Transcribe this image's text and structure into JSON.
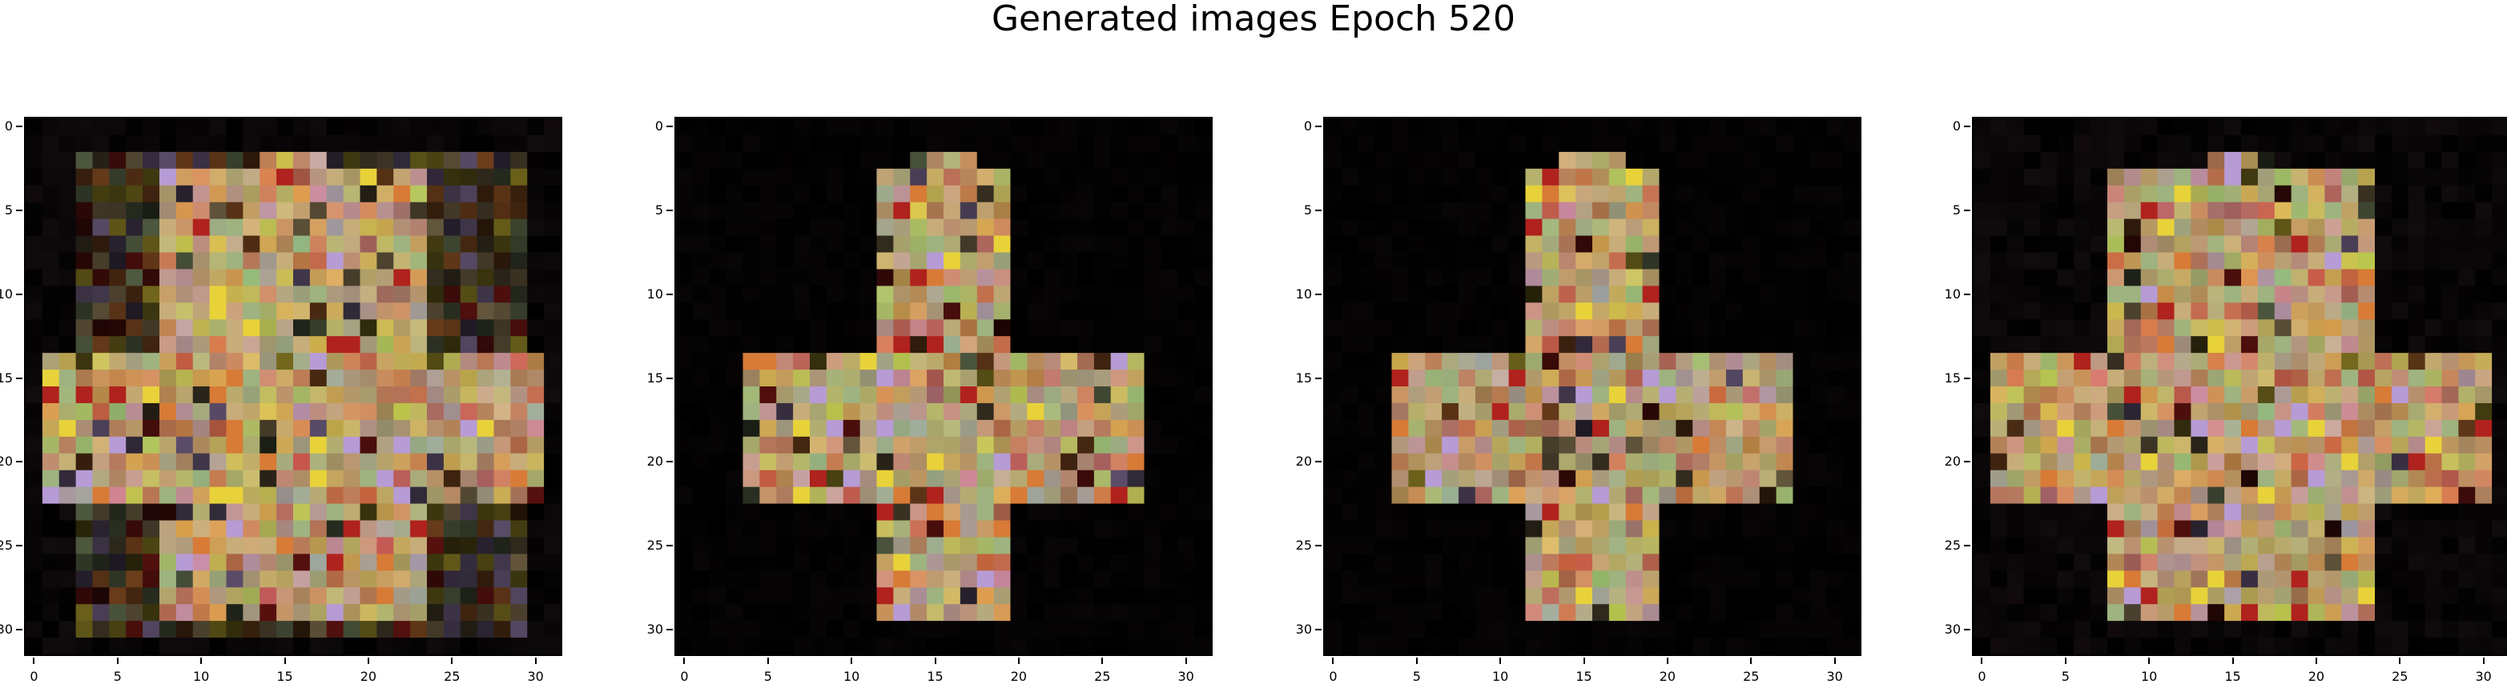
{
  "figure": {
    "title": "Generated images Epoch 520"
  },
  "panels": [
    {
      "name": "generated-image-1"
    },
    {
      "name": "generated-image-2"
    },
    {
      "name": "generated-image-3"
    },
    {
      "name": "generated-image-4"
    }
  ],
  "axes": {
    "x_ticks": [
      "0",
      "5",
      "10",
      "15",
      "20",
      "25",
      "30"
    ],
    "y_ticks": [
      "0",
      "5",
      "10",
      "15",
      "20",
      "25",
      "30"
    ],
    "grid_size": 32
  },
  "colors": {
    "background": "#000000",
    "bright_yellow": "#e8d23a",
    "tan": "#c7ad79",
    "orange": "#d77b36",
    "red": "#b0221d",
    "lavender": "#b79bd5",
    "sage": "#9eb37f"
  }
}
